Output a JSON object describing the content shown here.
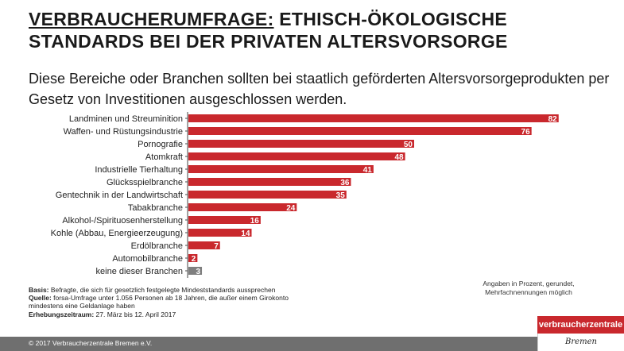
{
  "title": {
    "part1": "VERBRAUCHERUMFRAGE:",
    "part2": " ETHISCH-ÖKOLOGISCHE",
    "line2": "STANDARDS BEI DER PRIVATEN ALTERSVORSORGE"
  },
  "subtitle": "Diese Bereiche oder Branchen sollten bei staatlich geförderten Altersvorsorgeprodukten per Gesetz von Investitionen ausgeschlossen werden.",
  "chart_data": {
    "type": "bar",
    "orientation": "horizontal",
    "categories": [
      "Landminen und Streuminition",
      "Waffen- und Rüstungsindustrie",
      "Pornografie",
      "Atomkraft",
      "Industrielle Tierhaltung",
      "Glücksspielbranche",
      "Gentechnik in der Landwirtschaft",
      "Tabakbranche",
      "Alkohol-/Spirituosenherstellung",
      "Kohle (Abbau, Energieerzeugung)",
      "Erdölbranche",
      "Automobilbranche",
      "keine dieser Branchen"
    ],
    "values": [
      82,
      76,
      50,
      48,
      41,
      36,
      35,
      24,
      16,
      14,
      7,
      2,
      3
    ],
    "colors": [
      "#c9282d",
      "#c9282d",
      "#c9282d",
      "#c9282d",
      "#c9282d",
      "#c9282d",
      "#c9282d",
      "#c9282d",
      "#c9282d",
      "#c9282d",
      "#c9282d",
      "#c9282d",
      "#7f7f7f"
    ],
    "xlim": [
      0,
      100
    ],
    "unit": "Prozent",
    "grid": false
  },
  "notes": {
    "basis_label": "Basis:",
    "basis_text": " Befragte, die sich für gesetzlich festgelegte Mindeststandards aussprechen",
    "quelle_label": "Quelle:",
    "quelle_text": " forsa-Umfrage unter 1.056 Personen ab 18 Jahren, die außer einem Girokonto",
    "quelle_text2": "mindestens eine Geldanlage haben",
    "zeitraum_label": "Erhebungszeitraum:",
    "zeitraum_text": "  27. März bis 12. April 2017"
  },
  "footnote": "Angaben in Prozent, gerundet, Mehrfachnennungen möglich",
  "copyright": "© 2017 Verbraucherzentrale Bremen e.V.",
  "logo": {
    "top": "verbraucherzentrale",
    "bottom": "Bremen"
  },
  "colors": {
    "accent": "#c9282d",
    "neutral": "#7f7f7f",
    "footer": "#6f6f6f"
  }
}
